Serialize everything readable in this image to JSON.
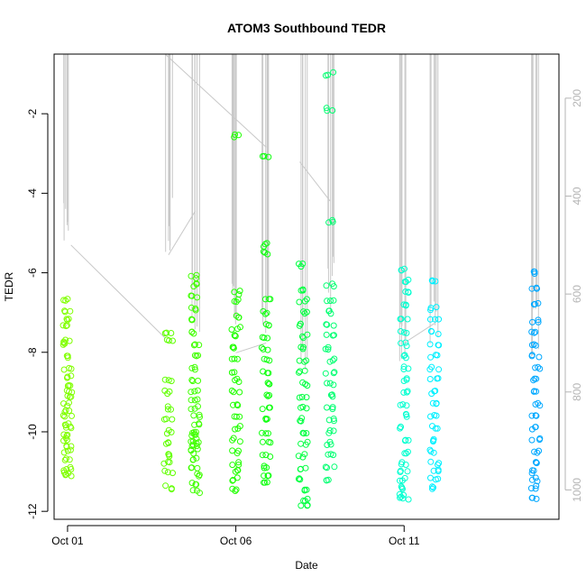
{
  "chart_data": {
    "type": "scatter",
    "title": "ATOM3 Southbound TEDR",
    "xlabel": "Date",
    "ylabel": "TEDR",
    "y2label": "",
    "x_tick_labels": [
      "Oct 01",
      "Oct 06",
      "Oct 11"
    ],
    "x_tick_values": [
      1,
      6,
      11
    ],
    "xlim": [
      0.6,
      15.6
    ],
    "ylim": [
      -12.2,
      -0.5
    ],
    "y_ticks": [
      -12,
      -10,
      -8,
      -6,
      -4,
      -2
    ],
    "y2_ticks": [
      200,
      400,
      600,
      800,
      1000
    ],
    "y2lim": [
      1060,
      110
    ],
    "grid": false,
    "point_color_scale": [
      "#7fff00",
      "#00ff00",
      "#00ffff",
      "#0080ff"
    ],
    "line_color": "#c8c8c8",
    "clusters": [
      {
        "day": 1.0,
        "color": "#80ff00",
        "y_points": [
          -6.7,
          -7.0,
          -7.2,
          -7.3,
          -7.7,
          -7.8,
          -8.1,
          -8.4,
          -8.6,
          -8.8,
          -9.0,
          -9.1,
          -9.3,
          -9.5,
          -9.6,
          -9.8,
          -9.9,
          -10.1,
          -10.2,
          -10.4,
          -10.5,
          -10.7,
          -10.9,
          -11.0,
          -11.1
        ],
        "depth_max": 520
      },
      {
        "day": 4.0,
        "color": "#60ff00",
        "y_points": [
          -7.5,
          -7.7,
          -8.7,
          -9.0,
          -9.4,
          -9.7,
          -10.0,
          -10.3,
          -10.6,
          -10.8,
          -11.0,
          -11.4
        ],
        "depth_max": 520
      },
      {
        "day": 4.8,
        "color": "#40ff00",
        "y_points": [
          -6.1,
          -6.3,
          -6.6,
          -6.9,
          -7.2,
          -7.5,
          -7.8,
          -8.1,
          -8.4,
          -8.7,
          -9.0,
          -9.2,
          -9.4,
          -9.6,
          -9.8,
          -10.0,
          -10.1,
          -10.2,
          -10.3,
          -10.4,
          -10.5,
          -10.7,
          -10.9,
          -11.1,
          -11.3,
          -11.5
        ],
        "depth_max": 700
      },
      {
        "day": 6.0,
        "color": "#20ff00",
        "y_points": [
          -2.55,
          -6.5,
          -6.7,
          -7.1,
          -7.4,
          -7.6,
          -7.9,
          -8.2,
          -8.5,
          -8.7,
          -9.0,
          -9.3,
          -9.6,
          -9.9,
          -10.2,
          -10.5,
          -10.8,
          -11.0,
          -11.2,
          -11.45
        ],
        "depth_max": 690
      },
      {
        "day": 6.9,
        "color": "#10ff10",
        "y_points": [
          -3.1,
          -5.3,
          -5.5,
          -6.7,
          -7.0,
          -7.3,
          -7.6,
          -7.9,
          -8.2,
          -8.5,
          -8.8,
          -9.1,
          -9.4,
          -9.7,
          -10.0,
          -10.3,
          -10.6,
          -10.9,
          -11.1,
          -11.3
        ],
        "depth_max": 690
      },
      {
        "day": 8.0,
        "color": "#00ff40",
        "y_points": [
          -5.8,
          -6.4,
          -6.7,
          -7.0,
          -7.3,
          -7.6,
          -7.9,
          -8.2,
          -8.5,
          -8.8,
          -9.1,
          -9.4,
          -9.7,
          -10.0,
          -10.3,
          -10.6,
          -10.9,
          -11.2,
          -11.5,
          -11.7,
          -11.85
        ],
        "depth_max": 770
      },
      {
        "day": 8.8,
        "color": "#00ff70",
        "y_points": [
          -1.0,
          -1.9,
          -4.7,
          -6.3,
          -6.7,
          -7.0,
          -7.3,
          -7.6,
          -7.9,
          -8.2,
          -8.5,
          -8.8,
          -9.1,
          -9.4,
          -9.7,
          -10.0,
          -10.3,
          -10.6,
          -10.9,
          -11.25
        ],
        "depth_max": 640
      },
      {
        "day": 11.0,
        "color": "#00ffd0",
        "y_points": [
          -5.9,
          -6.2,
          -6.5,
          -6.8,
          -7.2,
          -7.5,
          -7.8,
          -8.1,
          -8.4,
          -8.7,
          -9.0,
          -9.3,
          -9.6,
          -9.9,
          -10.2,
          -10.5,
          -10.8,
          -11.0,
          -11.2,
          -11.4,
          -11.6,
          -11.7
        ],
        "depth_max": 780
      },
      {
        "day": 11.9,
        "color": "#00f0ff",
        "y_points": [
          -6.2,
          -6.9,
          -7.2,
          -7.5,
          -7.8,
          -8.1,
          -8.4,
          -8.7,
          -9.0,
          -9.3,
          -9.6,
          -9.9,
          -10.2,
          -10.5,
          -10.8,
          -11.0,
          -11.2,
          -11.4
        ],
        "depth_max": 720
      },
      {
        "day": 14.9,
        "color": "#00a8ff",
        "y_points": [
          -6.0,
          -6.4,
          -6.8,
          -7.2,
          -7.5,
          -7.8,
          -8.1,
          -8.4,
          -8.7,
          -9.0,
          -9.3,
          -9.6,
          -9.9,
          -10.2,
          -10.5,
          -10.8,
          -11.0,
          -11.2,
          -11.4,
          -11.65
        ],
        "depth_max": 730
      }
    ]
  }
}
